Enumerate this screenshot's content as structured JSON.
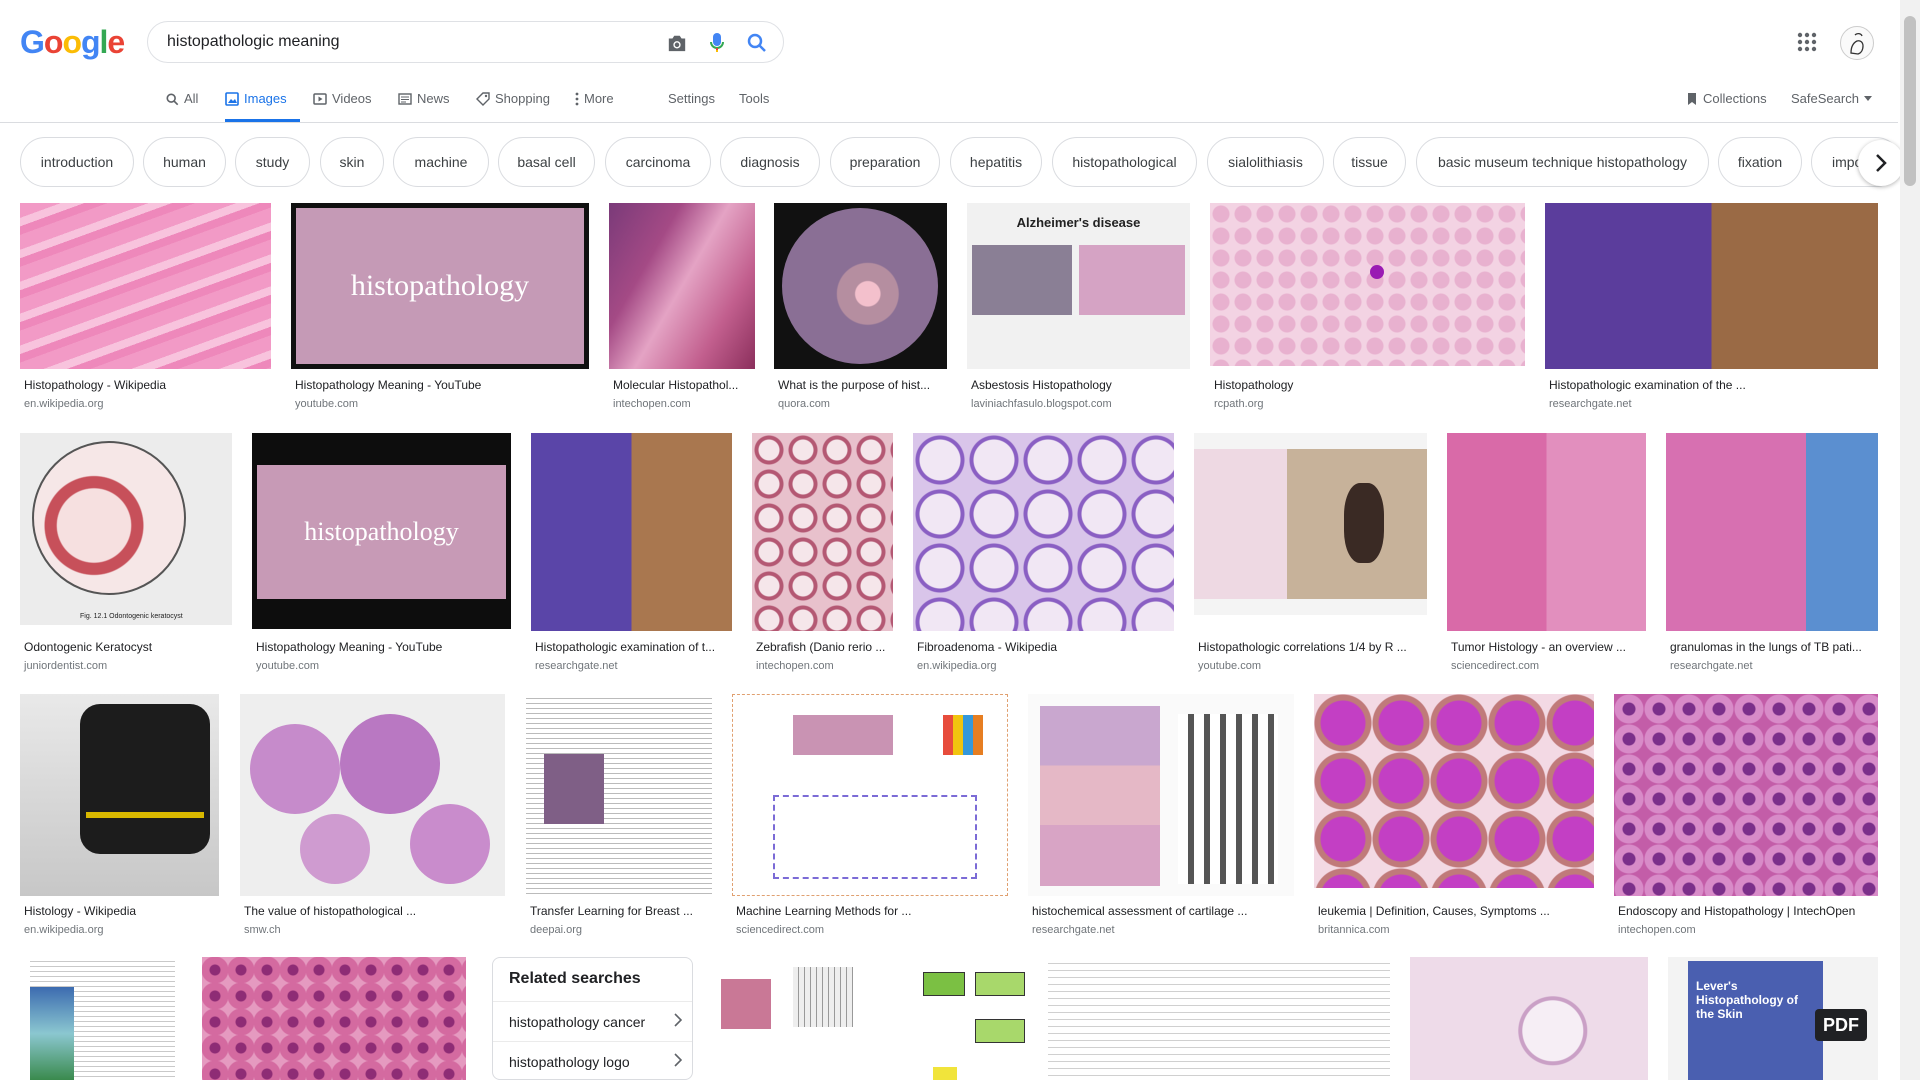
{
  "search": {
    "query": "histopathologic meaning"
  },
  "logo": {
    "text": "Google"
  },
  "tabs": [
    {
      "label": "All",
      "icon": "search-icon"
    },
    {
      "label": "Images",
      "icon": "image-icon"
    },
    {
      "label": "Videos",
      "icon": "video-icon"
    },
    {
      "label": "News",
      "icon": "news-icon"
    },
    {
      "label": "Shopping",
      "icon": "tag-icon"
    },
    {
      "label": "More",
      "icon": "more-vert-icon"
    },
    {
      "label": "Settings"
    },
    {
      "label": "Tools"
    }
  ],
  "right_tools": {
    "collections": "Collections",
    "safesearch": "SafeSearch"
  },
  "chips": [
    "introduction",
    "human",
    "study",
    "skin",
    "machine",
    "basal cell",
    "carcinoma",
    "diagnosis",
    "preparation",
    "hepatitis",
    "histopathological",
    "sialolithiasis",
    "tissue",
    "basic museum technique histopathology",
    "fixation",
    "impo"
  ],
  "results": [
    {
      "caption": "Histopathology - Wikipedia",
      "source": "en.wikipedia.org"
    },
    {
      "caption": "Histopathology Meaning - YouTube",
      "source": "youtube.com",
      "overlay": "histopathology"
    },
    {
      "caption": "Molecular Histopathol...",
      "source": "intechopen.com"
    },
    {
      "caption": "What is the purpose of hist...",
      "source": "quora.com"
    },
    {
      "caption": "Asbestosis Histopathology",
      "source": "laviniachfasulo.blogspot.com",
      "overlay": "Alzheimer's disease"
    },
    {
      "caption": "Histopathology",
      "source": "rcpath.org"
    },
    {
      "caption": "Histopathologic examination of the ...",
      "source": "researchgate.net"
    },
    {
      "caption": "Odontogenic Keratocyst",
      "source": "juniordentist.com",
      "overlay": "Fig. 12.1 Odontogenic keratocyst"
    },
    {
      "caption": "Histopathology Meaning - YouTube",
      "source": "youtube.com",
      "overlay": "histopathology"
    },
    {
      "caption": "Histopathologic examination of t...",
      "source": "researchgate.net"
    },
    {
      "caption": "Zebrafish (Danio rerio ...",
      "source": "intechopen.com"
    },
    {
      "caption": "Fibroadenoma - Wikipedia",
      "source": "en.wikipedia.org"
    },
    {
      "caption": "Histopathologic correlations 1/4 by R ...",
      "source": "youtube.com"
    },
    {
      "caption": "Tumor Histology - an overview ...",
      "source": "sciencedirect.com"
    },
    {
      "caption": "granulomas in the lungs of TB pati...",
      "source": "researchgate.net"
    },
    {
      "caption": "Histology - Wikipedia",
      "source": "en.wikipedia.org"
    },
    {
      "caption": "The value of histopathological ...",
      "source": "smw.ch"
    },
    {
      "caption": "Transfer Learning for Breast ...",
      "source": "deepai.org"
    },
    {
      "caption": "Machine Learning Methods for ...",
      "source": "sciencedirect.com"
    },
    {
      "caption": "histochemical assessment of cartilage ...",
      "source": "researchgate.net"
    },
    {
      "caption": "leukemia | Definition, Causes, Symptoms ...",
      "source": "britannica.com"
    },
    {
      "caption": "Endoscopy and Histopathology | IntechOpen",
      "source": "intechopen.com"
    }
  ],
  "related": {
    "title": "Related searches",
    "items": [
      "histopathology cancer",
      "histopathology logo"
    ]
  },
  "pdf_badge": "PDF",
  "book_title": "Lever's Histopathology of the Skin"
}
